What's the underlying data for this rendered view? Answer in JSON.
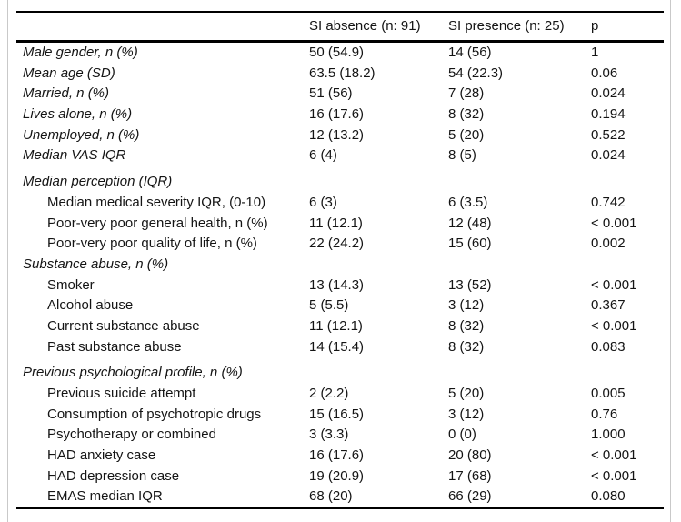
{
  "table": {
    "header": {
      "col1": "",
      "col2": "SI absence (n: 91)",
      "col3": "SI presence (n: 25)",
      "col4": "p"
    },
    "rows": [
      {
        "variant": "item",
        "label": "Male gender, n (%)",
        "absence": "50 (54.9)",
        "presence": "14 (56)",
        "p": "1"
      },
      {
        "variant": "item",
        "label": "Mean age (SD)",
        "absence": "63.5 (18.2)",
        "presence": "54 (22.3)",
        "p": "0.06"
      },
      {
        "variant": "item",
        "label": "Married, n (%)",
        "absence": "51 (56)",
        "presence": "7 (28)",
        "p": "0.024"
      },
      {
        "variant": "item",
        "label": "Lives alone, n (%)",
        "absence": "16 (17.6)",
        "presence": "8 (32)",
        "p": "0.194"
      },
      {
        "variant": "item",
        "label": "Unemployed, n (%)",
        "absence": "12 (13.2)",
        "presence": "5 (20)",
        "p": "0.522"
      },
      {
        "variant": "item",
        "label": "Median VAS IQR",
        "absence": "6 (4)",
        "presence": "8 (5)",
        "p": "0.024"
      },
      {
        "variant": "section",
        "label": "Median perception (IQR)",
        "absence": "",
        "presence": "",
        "p": ""
      },
      {
        "variant": "sub",
        "label": "Median medical severity IQR, (0-10)",
        "absence": "6 (3)",
        "presence": "6 (3.5)",
        "p": "0.742"
      },
      {
        "variant": "sub",
        "label": "Poor-very poor general health, n (%)",
        "absence": "11 (12.1)",
        "presence": "12 (48)",
        "p": "< 0.001"
      },
      {
        "variant": "sub",
        "label": "Poor-very poor quality of life, n (%)",
        "absence": "22 (24.2)",
        "presence": "15 (60)",
        "p": "0.002"
      },
      {
        "variant": "section",
        "label": "Substance abuse, n (%)",
        "absence": "",
        "presence": "",
        "p": ""
      },
      {
        "variant": "sub",
        "label": "Smoker",
        "absence": "13 (14.3)",
        "presence": "13 (52)",
        "p": "< 0.001"
      },
      {
        "variant": "sub",
        "label": "Alcohol abuse",
        "absence": "5 (5.5)",
        "presence": "3 (12)",
        "p": "0.367"
      },
      {
        "variant": "sub",
        "label": "Current substance abuse",
        "absence": "11 (12.1)",
        "presence": "8 (32)",
        "p": "< 0.001"
      },
      {
        "variant": "sub",
        "label": "Past substance abuse",
        "absence": "14 (15.4)",
        "presence": "8 (32)",
        "p": "0.083"
      },
      {
        "variant": "section",
        "label": "Previous psychological profile, n (%)",
        "absence": "",
        "presence": "",
        "p": ""
      },
      {
        "variant": "sub",
        "label": "Previous suicide attempt",
        "absence": "2 (2.2)",
        "presence": "5 (20)",
        "p": "0.005"
      },
      {
        "variant": "sub",
        "label": "Consumption of psychotropic drugs",
        "absence": "15 (16.5)",
        "presence": "3 (12)",
        "p": "0.76"
      },
      {
        "variant": "sub",
        "label": "Psychotherapy or combined",
        "absence": "3 (3.3)",
        "presence": "0 (0)",
        "p": "1.000"
      },
      {
        "variant": "sub",
        "label": "HAD anxiety case",
        "absence": "16 (17.6)",
        "presence": "20 (80)",
        "p": "< 0.001"
      },
      {
        "variant": "sub",
        "label": "HAD depression case",
        "absence": "19 (20.9)",
        "presence": "17 (68)",
        "p": "< 0.001"
      },
      {
        "variant": "sub",
        "label": "EMAS median IQR",
        "absence": "68 (20)",
        "presence": "66 (29)",
        "p": "0.080"
      }
    ]
  },
  "colors": {
    "rule": "#000000",
    "text": "#141414",
    "frame_border": "#c9c9c9",
    "background": "#ffffff"
  }
}
